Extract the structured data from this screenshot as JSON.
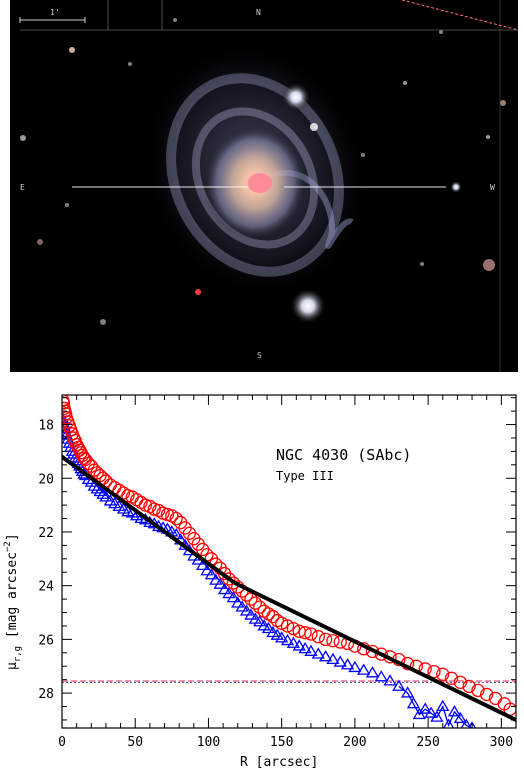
{
  "image_panel": {
    "colors": {
      "background": "#000000",
      "galaxy_core": "#f4c0a8",
      "galaxy_arms": "#9fa3c8",
      "overlay_line": "#ffffff",
      "edge_line": "#ff6a7a"
    },
    "scale_bar_label": "1'",
    "compass_north": "N",
    "compass_east": "E",
    "marker_left": "E",
    "marker_right": "W",
    "marker_bottom": "S"
  },
  "chart_data": {
    "type": "scatter",
    "object_label": "NGC 4030 (SAbc)",
    "profile_type": "Type III",
    "xlabel": "R [arcsec]",
    "ylabel_main": "μ",
    "ylabel_sub": "r,g",
    "ylabel_unit": "[mag arcsec",
    "ylabel_exp": "−2",
    "ylabel_close": "]",
    "xlim": [
      0,
      310
    ],
    "ylim": [
      29.3,
      16.9
    ],
    "x_ticks": [
      0,
      50,
      100,
      150,
      200,
      250,
      300
    ],
    "y_ticks": [
      18,
      20,
      22,
      24,
      26,
      28
    ],
    "colors": {
      "r_band": "#ff0000",
      "g_band": "#0000ff",
      "fit": "#000000",
      "limit_r": "#d03060",
      "limit_g": "#6040a0"
    },
    "series": [
      {
        "band": "r",
        "marker": "circle",
        "points": [
          [
            0.5,
            17.1
          ],
          [
            1,
            17.2
          ],
          [
            1.5,
            17.4
          ],
          [
            2,
            17.5
          ],
          [
            2.5,
            17.6
          ],
          [
            3,
            17.75
          ],
          [
            4,
            17.9
          ],
          [
            5,
            18.05
          ],
          [
            6,
            18.2
          ],
          [
            7,
            18.35
          ],
          [
            8,
            18.5
          ],
          [
            9,
            18.6
          ],
          [
            10,
            18.75
          ],
          [
            11,
            18.85
          ],
          [
            12,
            18.95
          ],
          [
            13,
            19.05
          ],
          [
            14,
            19.15
          ],
          [
            15,
            19.25
          ],
          [
            16,
            19.3
          ],
          [
            18,
            19.45
          ],
          [
            20,
            19.55
          ],
          [
            22,
            19.7
          ],
          [
            24,
            19.8
          ],
          [
            26,
            19.9
          ],
          [
            28,
            20.0
          ],
          [
            30,
            20.1
          ],
          [
            33,
            20.25
          ],
          [
            36,
            20.35
          ],
          [
            39,
            20.45
          ],
          [
            42,
            20.55
          ],
          [
            45,
            20.65
          ],
          [
            48,
            20.7
          ],
          [
            51,
            20.8
          ],
          [
            54,
            20.9
          ],
          [
            57,
            21.0
          ],
          [
            60,
            21.05
          ],
          [
            63,
            21.15
          ],
          [
            66,
            21.2
          ],
          [
            69,
            21.3
          ],
          [
            72,
            21.35
          ],
          [
            75,
            21.4
          ],
          [
            78,
            21.5
          ],
          [
            81,
            21.65
          ],
          [
            84,
            21.85
          ],
          [
            87,
            22.05
          ],
          [
            90,
            22.25
          ],
          [
            93,
            22.45
          ],
          [
            96,
            22.65
          ],
          [
            99,
            22.85
          ],
          [
            102,
            23.0
          ],
          [
            105,
            23.2
          ],
          [
            108,
            23.35
          ],
          [
            111,
            23.55
          ],
          [
            114,
            23.75
          ],
          [
            117,
            23.9
          ],
          [
            120,
            24.05
          ],
          [
            123,
            24.2
          ],
          [
            126,
            24.35
          ],
          [
            129,
            24.5
          ],
          [
            132,
            24.65
          ],
          [
            135,
            24.8
          ],
          [
            138,
            24.95
          ],
          [
            141,
            25.05
          ],
          [
            144,
            25.15
          ],
          [
            147,
            25.3
          ],
          [
            150,
            25.4
          ],
          [
            154,
            25.5
          ],
          [
            158,
            25.6
          ],
          [
            162,
            25.7
          ],
          [
            166,
            25.75
          ],
          [
            170,
            25.8
          ],
          [
            175,
            25.9
          ],
          [
            180,
            26.0
          ],
          [
            185,
            26.05
          ],
          [
            190,
            26.1
          ],
          [
            195,
            26.15
          ],
          [
            200,
            26.25
          ],
          [
            206,
            26.35
          ],
          [
            212,
            26.45
          ],
          [
            218,
            26.55
          ],
          [
            224,
            26.65
          ],
          [
            230,
            26.75
          ],
          [
            236,
            26.9
          ],
          [
            242,
            27.0
          ],
          [
            248,
            27.1
          ],
          [
            254,
            27.2
          ],
          [
            260,
            27.3
          ],
          [
            266,
            27.45
          ],
          [
            272,
            27.6
          ],
          [
            278,
            27.75
          ],
          [
            284,
            27.9
          ],
          [
            290,
            28.05
          ],
          [
            296,
            28.2
          ],
          [
            302,
            28.4
          ],
          [
            306,
            28.6
          ]
        ]
      },
      {
        "band": "g",
        "marker": "triangle",
        "points": [
          [
            0.5,
            17.8
          ],
          [
            1,
            17.95
          ],
          [
            1.5,
            18.05
          ],
          [
            2,
            18.15
          ],
          [
            2.5,
            18.3
          ],
          [
            3,
            18.4
          ],
          [
            4,
            18.55
          ],
          [
            5,
            18.7
          ],
          [
            6,
            18.85
          ],
          [
            7,
            19.0
          ],
          [
            8,
            19.1
          ],
          [
            9,
            19.25
          ],
          [
            10,
            19.35
          ],
          [
            11,
            19.45
          ],
          [
            12,
            19.55
          ],
          [
            13,
            19.65
          ],
          [
            14,
            19.75
          ],
          [
            15,
            19.85
          ],
          [
            16,
            19.9
          ],
          [
            18,
            20.05
          ],
          [
            20,
            20.15
          ],
          [
            22,
            20.3
          ],
          [
            24,
            20.4
          ],
          [
            26,
            20.5
          ],
          [
            28,
            20.6
          ],
          [
            30,
            20.7
          ],
          [
            33,
            20.85
          ],
          [
            36,
            20.95
          ],
          [
            39,
            21.05
          ],
          [
            42,
            21.15
          ],
          [
            45,
            21.25
          ],
          [
            48,
            21.3
          ],
          [
            51,
            21.4
          ],
          [
            54,
            21.5
          ],
          [
            57,
            21.55
          ],
          [
            60,
            21.65
          ],
          [
            63,
            21.7
          ],
          [
            66,
            21.8
          ],
          [
            69,
            21.85
          ],
          [
            72,
            21.9
          ],
          [
            75,
            22.0
          ],
          [
            78,
            22.1
          ],
          [
            81,
            22.3
          ],
          [
            84,
            22.5
          ],
          [
            87,
            22.7
          ],
          [
            90,
            22.9
          ],
          [
            93,
            23.05
          ],
          [
            96,
            23.25
          ],
          [
            99,
            23.45
          ],
          [
            102,
            23.6
          ],
          [
            105,
            23.8
          ],
          [
            108,
            23.95
          ],
          [
            111,
            24.15
          ],
          [
            114,
            24.3
          ],
          [
            117,
            24.45
          ],
          [
            120,
            24.65
          ],
          [
            123,
            24.8
          ],
          [
            126,
            24.95
          ],
          [
            129,
            25.1
          ],
          [
            132,
            25.25
          ],
          [
            135,
            25.35
          ],
          [
            138,
            25.5
          ],
          [
            141,
            25.6
          ],
          [
            144,
            25.75
          ],
          [
            147,
            25.85
          ],
          [
            150,
            25.95
          ],
          [
            154,
            26.05
          ],
          [
            158,
            26.15
          ],
          [
            162,
            26.25
          ],
          [
            166,
            26.35
          ],
          [
            170,
            26.45
          ],
          [
            175,
            26.55
          ],
          [
            180,
            26.65
          ],
          [
            185,
            26.75
          ],
          [
            190,
            26.85
          ],
          [
            195,
            26.95
          ],
          [
            200,
            27.05
          ],
          [
            206,
            27.15
          ],
          [
            212,
            27.25
          ],
          [
            218,
            27.4
          ],
          [
            224,
            27.55
          ],
          [
            230,
            27.75
          ],
          [
            236,
            28.0
          ],
          [
            240,
            28.4
          ],
          [
            244,
            28.8
          ],
          [
            248,
            28.6
          ],
          [
            252,
            28.75
          ],
          [
            256,
            28.9
          ],
          [
            260,
            28.5
          ],
          [
            264,
            29.2
          ],
          [
            268,
            28.7
          ],
          [
            272,
            28.95
          ],
          [
            276,
            29.2
          ],
          [
            280,
            29.3
          ]
        ]
      }
    ],
    "fit_segments": [
      {
        "x": [
          0,
          118
        ],
        "y": [
          19.2,
          23.9
        ]
      },
      {
        "x": [
          118,
          310
        ],
        "y": [
          23.9,
          29.0
        ]
      }
    ],
    "limits": [
      {
        "band": "r",
        "y": 27.55
      },
      {
        "band": "g",
        "y": 27.6
      }
    ]
  }
}
